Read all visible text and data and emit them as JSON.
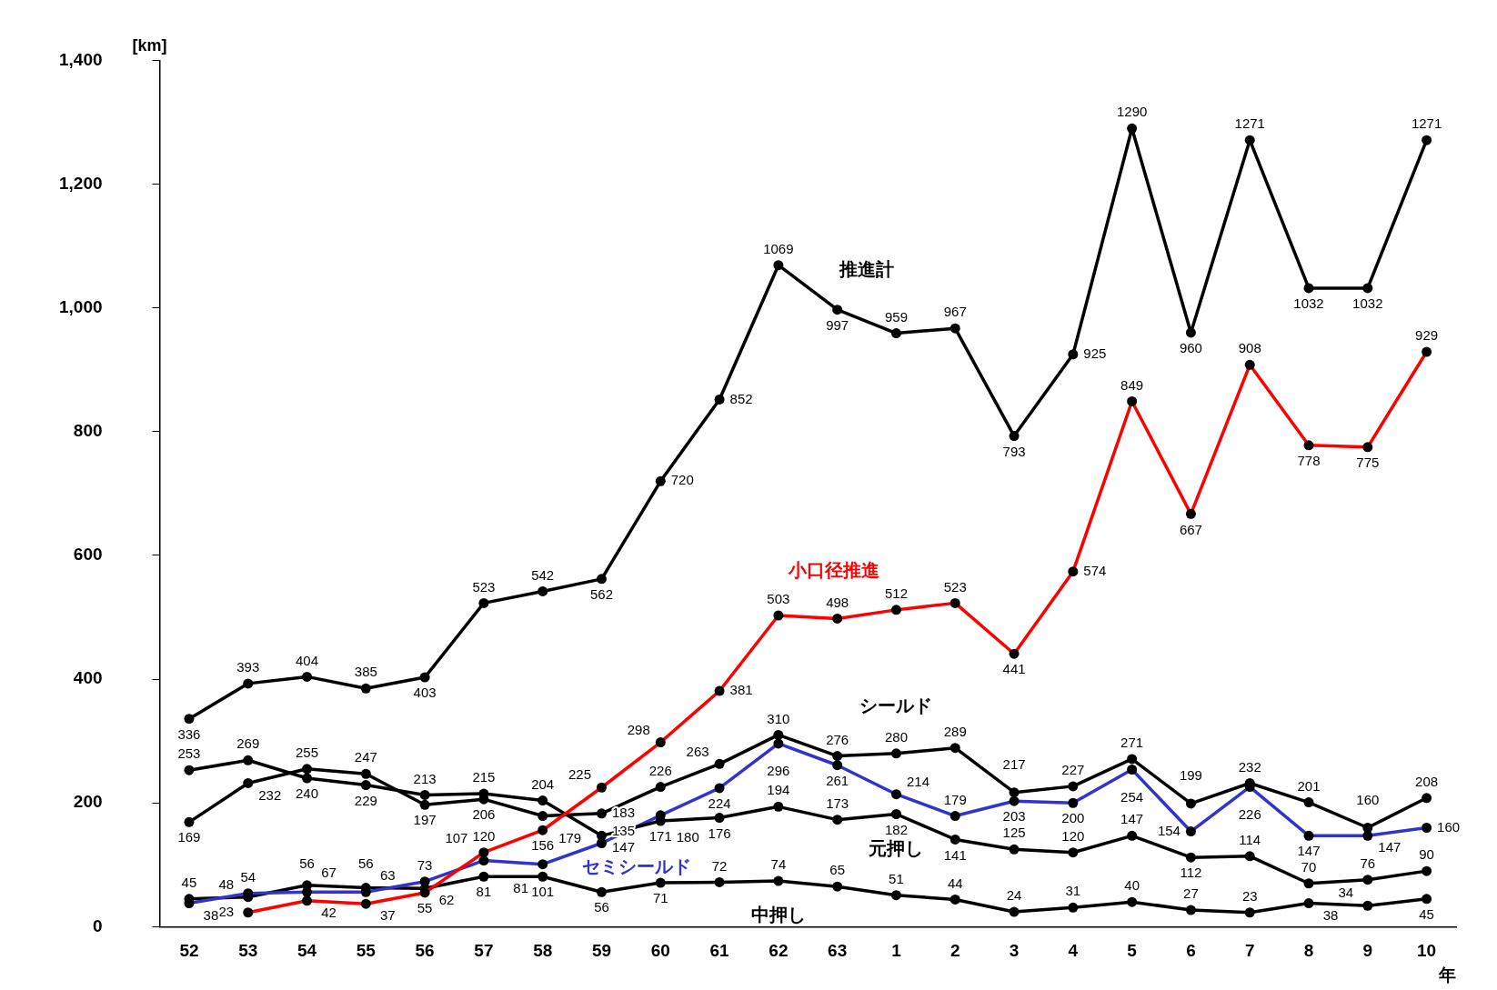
{
  "chart_data": {
    "type": "line",
    "ylabel": "[km]",
    "xlabel": "年",
    "categories": [
      "52",
      "53",
      "54",
      "55",
      "56",
      "57",
      "58",
      "59",
      "60",
      "61",
      "62",
      "63",
      "1",
      "2",
      "3",
      "4",
      "5",
      "6",
      "7",
      "8",
      "9",
      "10"
    ],
    "series": [
      {
        "name": "推進計",
        "color": "#000000",
        "values": [
          336,
          393,
          404,
          385,
          403,
          523,
          542,
          562,
          720,
          852,
          1069,
          997,
          959,
          967,
          793,
          925,
          1290,
          960,
          1271,
          1032,
          1032,
          1271
        ]
      },
      {
        "name": "小口径推進",
        "color": "#ff0000",
        "values": [
          null,
          23,
          42,
          37,
          55,
          120,
          156,
          225,
          298,
          381,
          503,
          498,
          512,
          523,
          441,
          574,
          849,
          667,
          908,
          778,
          775,
          929
        ]
      },
      {
        "name": "シールド",
        "color": "#000000",
        "values": [
          169,
          232,
          255,
          247,
          197,
          206,
          179,
          183,
          226,
          263,
          310,
          276,
          280,
          289,
          217,
          227,
          271,
          199,
          232,
          201,
          160,
          208
        ]
      },
      {
        "name": "元押し",
        "color": "#000000",
        "values": [
          253,
          269,
          240,
          229,
          213,
          215,
          204,
          147,
          171,
          176,
          194,
          173,
          182,
          141,
          125,
          120,
          147,
          112,
          114,
          70,
          76,
          90
        ]
      },
      {
        "name": "セミシールド",
        "color": "#3333cc",
        "values": [
          38,
          54,
          56,
          56,
          73,
          107,
          101,
          135,
          180,
          224,
          296,
          261,
          214,
          179,
          203,
          200,
          254,
          154,
          226,
          147,
          147,
          160
        ]
      },
      {
        "name": "中押し",
        "color": "#000000",
        "values": [
          45,
          48,
          67,
          63,
          62,
          81,
          81,
          56,
          71,
          72,
          74,
          65,
          51,
          44,
          24,
          31,
          40,
          27,
          23,
          38,
          34,
          45
        ]
      }
    ],
    "ylim": [
      0,
      1400
    ],
    "yticks": [
      0,
      200,
      400,
      600,
      800,
      {
        "value": 1000,
        "label": "1,000"
      },
      {
        "value": 1200,
        "label": "1,200"
      },
      {
        "value": 1400,
        "label": "1,400"
      }
    ],
    "grid": false,
    "legend": false,
    "marker": "circle",
    "line_style": "solid",
    "data_labels": true
  }
}
